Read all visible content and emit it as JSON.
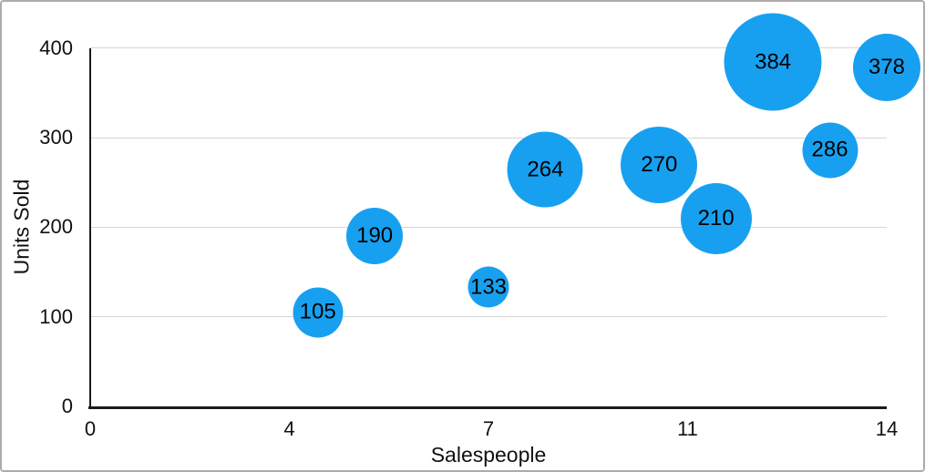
{
  "chart_data": {
    "type": "bubble",
    "title": "",
    "xlabel": "Salespeople",
    "ylabel": "Units Sold",
    "xlim": [
      0,
      14
    ],
    "ylim": [
      0,
      400
    ],
    "grid": "horizontal",
    "legend": "none",
    "x_ticks": [
      {
        "pos": 0,
        "label": "0"
      },
      {
        "pos": 3.5,
        "label": "4"
      },
      {
        "pos": 7,
        "label": "7"
      },
      {
        "pos": 10.5,
        "label": "11"
      },
      {
        "pos": 14,
        "label": "14"
      }
    ],
    "y_ticks": [
      {
        "pos": 0,
        "label": "0"
      },
      {
        "pos": 100,
        "label": "100"
      },
      {
        "pos": 200,
        "label": "200"
      },
      {
        "pos": 300,
        "label": "300"
      },
      {
        "pos": 400,
        "label": "400"
      }
    ],
    "series": [
      {
        "name": "Units Sold",
        "points": [
          {
            "x": 4,
            "y": 105,
            "label": "105",
            "radius_px": 27.5
          },
          {
            "x": 5,
            "y": 190,
            "label": "190",
            "radius_px": 31
          },
          {
            "x": 7,
            "y": 133,
            "label": "133",
            "radius_px": 22.5
          },
          {
            "x": 8,
            "y": 264,
            "label": "264",
            "radius_px": 41.5
          },
          {
            "x": 10,
            "y": 270,
            "label": "270",
            "radius_px": 42
          },
          {
            "x": 11,
            "y": 210,
            "label": "210",
            "radius_px": 39
          },
          {
            "x": 12,
            "y": 384,
            "label": "384",
            "radius_px": 53.5
          },
          {
            "x": 13,
            "y": 286,
            "label": "286",
            "radius_px": 30.5
          },
          {
            "x": 14,
            "y": 378,
            "label": "378",
            "radius_px": 37
          }
        ]
      }
    ],
    "colors": {
      "bubble_fill": "#18A0F0",
      "bubble_label": "#000000",
      "gridline": "#d6d6d6",
      "axis_line": "#1b1b1b",
      "tick_text": "#111111",
      "background": "#ffffff",
      "frame_border": "#ababab"
    }
  }
}
